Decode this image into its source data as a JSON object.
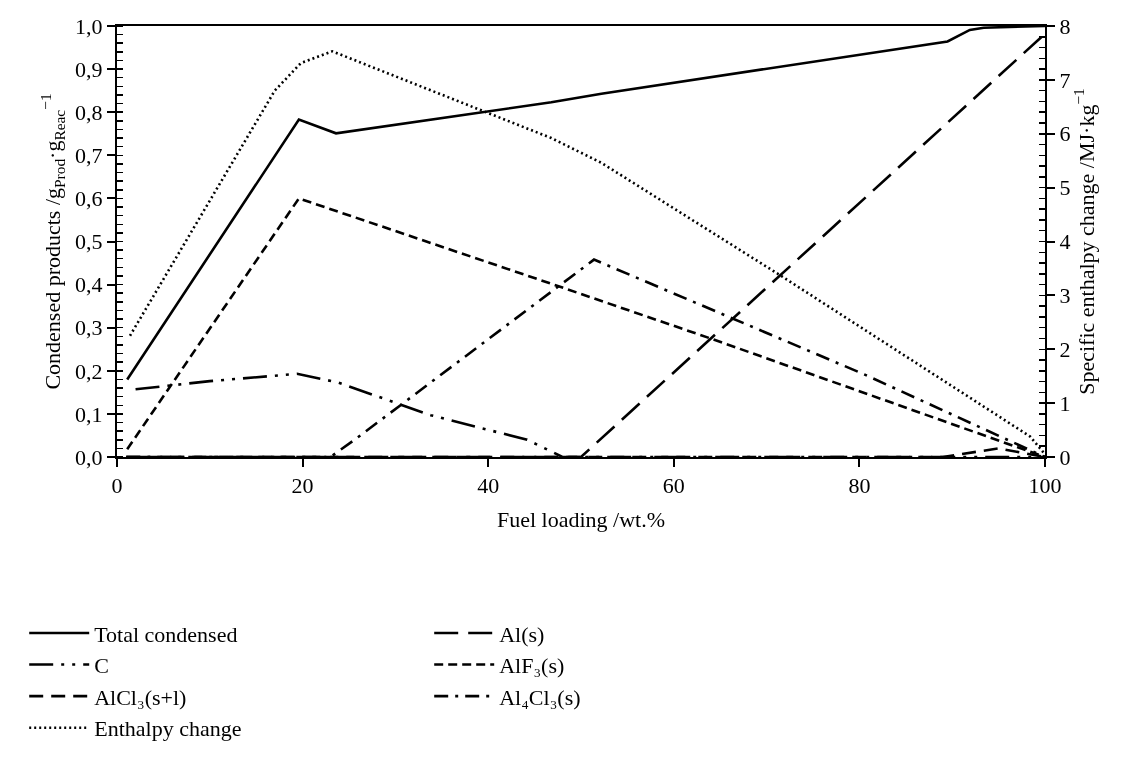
{
  "chart_data": {
    "type": "line",
    "xlabel": "Fuel loading /wt.%",
    "ylabel": "Condensed products /g$_{Prod}$·g$_{Reac}$$^{−1}$",
    "y2label": "Specific enthalpy change /MJ·kg$^{−1}$",
    "xlim": [
      0,
      100
    ],
    "xticks": [
      0,
      20,
      40,
      60,
      80,
      100
    ],
    "ylim": [
      0,
      1
    ],
    "yticks": [
      {
        "value": 0,
        "label": "0,0"
      },
      {
        "value": 0.1,
        "label": "0,1"
      },
      {
        "value": 0.2,
        "label": "0,2"
      },
      {
        "value": 0.3,
        "label": "0,3"
      },
      {
        "value": 0.4,
        "label": "0,4"
      },
      {
        "value": 0.5,
        "label": "0,5"
      },
      {
        "value": 0.6,
        "label": "0,6"
      },
      {
        "value": 0.7,
        "label": "0,7"
      },
      {
        "value": 0.8,
        "label": "0,8"
      },
      {
        "value": 0.9,
        "label": "0,9"
      },
      {
        "value": 1,
        "label": "1,0"
      }
    ],
    "y2lim": [
      0,
      8
    ],
    "y2ticks": [
      0,
      1,
      2,
      3,
      4,
      5,
      6,
      7,
      8
    ],
    "grid": false,
    "legend": "bottom",
    "marker": "none",
    "series": [
      {
        "name": "Total condensed",
        "color": "#000000",
        "line_style": "solid",
        "x": [
          1.1,
          19.6,
          23.6,
          46.8,
          52.2,
          89.5,
          91.9,
          93.4,
          100
        ],
        "values": [
          0.18,
          0.783,
          0.751,
          0.823,
          0.843,
          0.964,
          0.991,
          0.996,
          1.0
        ]
      },
      {
        "name": "Al(s)",
        "color": "#000000",
        "line_style": "long-dash",
        "x": [
          1,
          50,
          100
        ],
        "values": [
          0,
          0,
          0.982
        ]
      },
      {
        "name": "C",
        "color": "#000000",
        "line_style": "long-dash-dot-dot",
        "x": [
          2,
          10,
          19.4,
          23.8,
          33.8,
          44.2,
          48,
          100
        ],
        "values": [
          0.157,
          0.176,
          0.193,
          0.173,
          0.097,
          0.04,
          0,
          0
        ]
      },
      {
        "name": "AlF₃(s)",
        "color": "#000000",
        "line_style": "dashed",
        "x": [
          1.1,
          19.6,
          46.8,
          64.1,
          100
        ],
        "values": [
          0.018,
          0.6,
          0.402,
          0.274,
          0
        ]
      },
      {
        "name": "AlCl₃(s+l)",
        "color": "#000000",
        "line_style": "medium-dash",
        "x": [
          1,
          89,
          95,
          100
        ],
        "values": [
          0,
          0,
          0.02,
          0
        ]
      },
      {
        "name": "Al₄Cl₃(s)",
        "color": "#000000",
        "line_style": "dash-dot",
        "x": [
          1,
          23,
          25.6,
          51.4,
          80.7,
          100
        ],
        "values": [
          0,
          0,
          0.04,
          0.458,
          0.19,
          0
        ]
      },
      {
        "name": "Enthalpy change",
        "color": "#000000",
        "line_style": "dotted",
        "axis": "y2",
        "x": [
          1.4,
          17,
          19.8,
          23.2,
          46.8,
          52.2,
          71.4,
          98.4,
          100
        ],
        "values": [
          2.25,
          6.8,
          7.31,
          7.53,
          5.92,
          5.46,
          3.38,
          0.38,
          0.05
        ]
      }
    ]
  }
}
